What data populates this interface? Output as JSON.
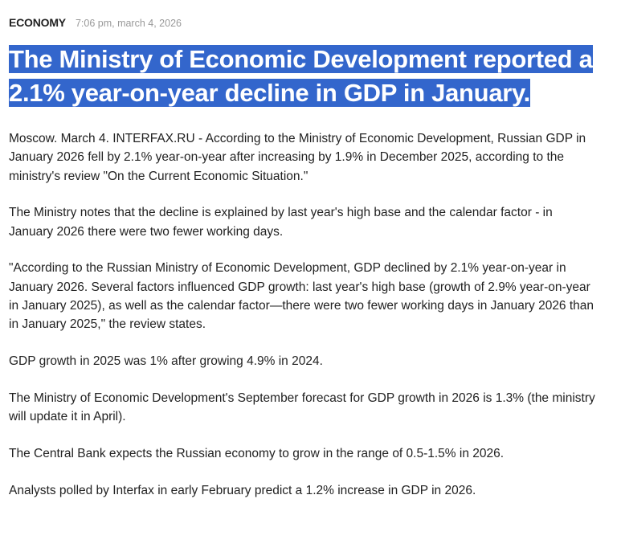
{
  "header": {
    "category": "ECONOMY",
    "timestamp": "7:06 pm, march 4, 2026"
  },
  "headline": "The Ministry of Economic Development reported a 2.1% year-on-year decline in GDP in January.",
  "paragraphs": [
    "Moscow. March 4. INTERFAX.RU - According to the Ministry of Economic Development, Russian GDP in January 2026 fell by 2.1% year-on-year after increasing by 1.9% in December 2025, according to the ministry's review \"On the Current Economic Situation.\"",
    "The Ministry notes that the decline is explained by last year's high base and the calendar factor - in January 2026 there were two fewer working days.",
    "\"According to the Russian Ministry of Economic Development, GDP declined by 2.1% year-on-year in January 2026. Several factors influenced GDP growth: last year's high base (growth of 2.9% year-on-year in January 2025), as well as the calendar factor—there were two fewer working days in January 2026 than in January 2025,\" the review states.",
    "GDP growth in 2025 was 1% after growing 4.9% in 2024.",
    "The Ministry of Economic Development's September forecast for GDP growth in 2026 is 1.3% (the ministry will update it in April).",
    "The Central Bank expects the Russian economy to grow in the range of 0.5-1.5% in 2026.",
    "Analysts polled by Interfax in early February predict a 1.2% increase in GDP in 2026."
  ],
  "colors": {
    "selection": "#3366cc",
    "category": "#222222",
    "timestamp": "#999999"
  }
}
